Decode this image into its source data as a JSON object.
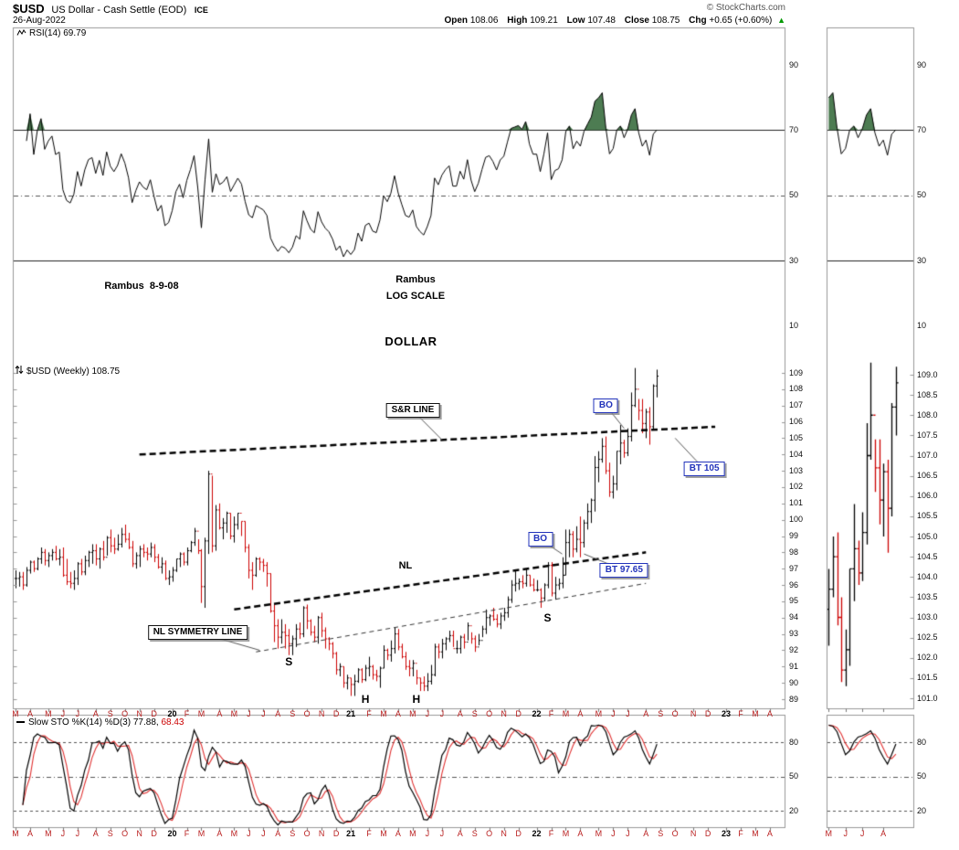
{
  "header": {
    "symbol": "$USD",
    "description": "US Dollar - Cash Settle (EOD)",
    "exchange": "ICE",
    "copyright": "© StockCharts.com",
    "date": "26-Aug-2022",
    "quote": {
      "open_l": "Open",
      "open_v": "108.06",
      "high_l": "High",
      "high_v": "109.21",
      "low_l": "Low",
      "low_v": "107.48",
      "close_l": "Close",
      "close_v": "108.75",
      "chg_l": "Chg",
      "chg_v": "+0.65 (+0.60%)",
      "arrow": "▲"
    }
  },
  "rsi_panel": {
    "name": "RSI(14)",
    "value": "69.79"
  },
  "price_panel": {
    "name": "$USD (Weekly)",
    "value": "108.75"
  },
  "sto_panel": {
    "name": "Slow STO %K(14) %D(3)",
    "k": "77.88,",
    "d": "68.43"
  },
  "notes": {
    "credit": "Rambus  8-9-08",
    "center_top": "Rambus",
    "center_mid": "LOG SCALE",
    "center_bottom": "DOLLAR"
  },
  "chart_data": {
    "type": "ohlc",
    "timeframe": "weekly",
    "title": "$USD US Dollar - Cash Settle (EOD) ICE",
    "price_ylim": [
      89,
      109
    ],
    "price_tick": 1,
    "mini_ylim": [
      101,
      109
    ],
    "mini_tick": 0.5,
    "mini_start_week": 160,
    "rsi_levels": [
      90,
      70,
      50,
      30,
      10
    ],
    "sto_levels": [
      80,
      50,
      20
    ],
    "indicators": {
      "rsi_period": 14,
      "sto_k_period": 14,
      "sto_d_period": 3
    },
    "colors": {
      "up": "#000000",
      "down": "#cc0000",
      "rsi_fill": "#4d7c52",
      "sto_k": "#000000",
      "sto_d": "#e03030",
      "annotation_blue": "#2233bb",
      "month_label": "#bb2222"
    },
    "months": [
      [
        "M",
        0
      ],
      [
        "A",
        4
      ],
      [
        "M",
        9
      ],
      [
        "J",
        13
      ],
      [
        "J",
        17
      ],
      [
        "A",
        22
      ],
      [
        "S",
        26
      ],
      [
        "O",
        30
      ],
      [
        "N",
        34
      ],
      [
        "D",
        38
      ],
      [
        "20",
        43
      ],
      [
        "F",
        47
      ],
      [
        "M",
        51
      ],
      [
        "A",
        56
      ],
      [
        "M",
        60
      ],
      [
        "J",
        64
      ],
      [
        "J",
        68
      ],
      [
        "A",
        72
      ],
      [
        "S",
        76
      ],
      [
        "O",
        80
      ],
      [
        "N",
        84
      ],
      [
        "D",
        88
      ],
      [
        "21",
        92
      ],
      [
        "F",
        97
      ],
      [
        "M",
        101
      ],
      [
        "A",
        105
      ],
      [
        "M",
        109
      ],
      [
        "J",
        113
      ],
      [
        "J",
        117
      ],
      [
        "A",
        122
      ],
      [
        "S",
        126
      ],
      [
        "O",
        130
      ],
      [
        "N",
        134
      ],
      [
        "D",
        138
      ],
      [
        "22",
        143
      ],
      [
        "F",
        147
      ],
      [
        "M",
        151
      ],
      [
        "A",
        155
      ],
      [
        "M",
        160
      ],
      [
        "J",
        164
      ],
      [
        "J",
        168
      ],
      [
        "A",
        173
      ],
      [
        "S",
        177
      ],
      [
        "O",
        181
      ],
      [
        "N",
        186
      ],
      [
        "D",
        190
      ],
      [
        "23",
        195
      ],
      [
        "F",
        199
      ],
      [
        "M",
        203
      ],
      [
        "A",
        207
      ]
    ],
    "weekly_hlc": [
      [
        96.9,
        95.8,
        96.4
      ],
      [
        96.8,
        95.9,
        96.5
      ],
      [
        96.8,
        95.7,
        96.0
      ],
      [
        97.1,
        95.9,
        96.9
      ],
      [
        97.5,
        96.7,
        97.4
      ],
      [
        97.5,
        96.8,
        97.0
      ],
      [
        97.7,
        96.9,
        97.6
      ],
      [
        98.3,
        97.3,
        98.0
      ],
      [
        98.2,
        97.2,
        97.5
      ],
      [
        98.0,
        97.1,
        97.8
      ],
      [
        98.2,
        97.5,
        98.0
      ],
      [
        98.4,
        97.5,
        97.6
      ],
      [
        98.2,
        97.2,
        97.7
      ],
      [
        98.3,
        96.5,
        96.6
      ],
      [
        97.6,
        96.0,
        96.2
      ],
      [
        96.8,
        95.8,
        96.1
      ],
      [
        96.9,
        95.7,
        96.4
      ],
      [
        97.4,
        96.0,
        97.3
      ],
      [
        97.6,
        96.6,
        96.8
      ],
      [
        97.8,
        96.6,
        97.5
      ],
      [
        98.1,
        97.1,
        98.0
      ],
      [
        98.5,
        97.3,
        98.1
      ],
      [
        98.5,
        97.2,
        97.6
      ],
      [
        98.3,
        97.0,
        98.2
      ],
      [
        98.7,
        97.5,
        97.7
      ],
      [
        99.0,
        97.8,
        98.9
      ],
      [
        99.4,
        98.0,
        98.4
      ],
      [
        98.9,
        97.9,
        98.2
      ],
      [
        99.1,
        98.1,
        98.5
      ],
      [
        99.5,
        98.3,
        99.1
      ],
      [
        99.7,
        98.6,
        98.8
      ],
      [
        99.2,
        98.2,
        98.3
      ],
      [
        98.7,
        97.1,
        97.3
      ],
      [
        98.0,
        97.0,
        97.8
      ],
      [
        98.4,
        97.1,
        98.2
      ],
      [
        98.5,
        97.7,
        98.0
      ],
      [
        98.3,
        97.5,
        97.9
      ],
      [
        98.6,
        97.7,
        98.3
      ],
      [
        98.5,
        97.4,
        97.7
      ],
      [
        97.9,
        97.0,
        97.1
      ],
      [
        97.7,
        96.7,
        97.3
      ],
      [
        97.5,
        96.3,
        96.4
      ],
      [
        96.9,
        96.0,
        96.5
      ],
      [
        97.1,
        96.2,
        96.9
      ],
      [
        97.6,
        96.8,
        97.6
      ],
      [
        98.0,
        97.1,
        97.9
      ],
      [
        98.0,
        97.2,
        97.4
      ],
      [
        98.3,
        97.2,
        98.1
      ],
      [
        98.7,
        98.0,
        98.6
      ],
      [
        99.5,
        98.4,
        99.3
      ],
      [
        98.8,
        97.9,
        98.1
      ],
      [
        98.2,
        94.9,
        95.9
      ],
      [
        98.9,
        94.6,
        98.7
      ],
      [
        103.0,
        97.9,
        102.8
      ],
      [
        102.7,
        98.0,
        98.4
      ],
      [
        100.9,
        98.1,
        100.6
      ],
      [
        101.0,
        99.4,
        99.5
      ],
      [
        100.1,
        98.8,
        99.8
      ],
      [
        100.5,
        99.2,
        100.4
      ],
      [
        100.4,
        98.8,
        99.0
      ],
      [
        100.2,
        98.6,
        99.7
      ],
      [
        100.4,
        99.4,
        100.4
      ],
      [
        99.9,
        99.0,
        99.9
      ],
      [
        99.9,
        98.0,
        98.3
      ],
      [
        98.5,
        96.4,
        96.9
      ],
      [
        97.4,
        95.7,
        96.6
      ],
      [
        97.7,
        96.5,
        97.6
      ],
      [
        97.7,
        96.9,
        97.4
      ],
      [
        97.6,
        96.8,
        97.2
      ],
      [
        97.4,
        95.9,
        96.7
      ],
      [
        96.7,
        94.3,
        94.4
      ],
      [
        94.8,
        92.5,
        93.5
      ],
      [
        93.9,
        92.1,
        92.8
      ],
      [
        93.9,
        92.4,
        93.1
      ],
      [
        93.6,
        92.1,
        92.9
      ],
      [
        93.3,
        91.7,
        92.4
      ],
      [
        92.9,
        91.7,
        92.7
      ],
      [
        93.6,
        92.2,
        93.3
      ],
      [
        93.7,
        92.7,
        93.0
      ],
      [
        94.7,
        92.8,
        94.6
      ],
      [
        94.8,
        93.3,
        93.8
      ],
      [
        93.9,
        92.9,
        93.1
      ],
      [
        93.5,
        92.5,
        92.8
      ],
      [
        94.1,
        92.4,
        94.0
      ],
      [
        94.3,
        92.8,
        93.2
      ],
      [
        93.4,
        92.1,
        92.7
      ],
      [
        92.8,
        92.0,
        92.4
      ],
      [
        92.5,
        91.5,
        91.8
      ],
      [
        91.9,
        90.5,
        90.8
      ],
      [
        91.2,
        90.4,
        91.0
      ],
      [
        91.0,
        89.7,
        90.0
      ],
      [
        90.5,
        89.6,
        90.3
      ],
      [
        90.3,
        89.2,
        89.9
      ],
      [
        90.5,
        89.2,
        90.1
      ],
      [
        90.9,
        90.0,
        90.8
      ],
      [
        90.9,
        90.0,
        90.2
      ],
      [
        91.1,
        90.1,
        90.9
      ],
      [
        91.6,
        90.4,
        91.0
      ],
      [
        91.1,
        90.2,
        90.5
      ],
      [
        90.8,
        90.1,
        90.4
      ],
      [
        91.0,
        89.7,
        90.9
      ],
      [
        92.3,
        90.9,
        92.0
      ],
      [
        92.1,
        91.4,
        91.7
      ],
      [
        92.6,
        91.3,
        92.1
      ],
      [
        93.4,
        91.8,
        93.0
      ],
      [
        93.3,
        92.0,
        92.2
      ],
      [
        92.4,
        91.5,
        91.6
      ],
      [
        91.9,
        90.8,
        91.0
      ],
      [
        91.4,
        90.4,
        90.9
      ],
      [
        91.4,
        90.4,
        91.2
      ],
      [
        90.8,
        89.9,
        90.3
      ],
      [
        90.3,
        89.5,
        90.0
      ],
      [
        90.4,
        89.5,
        89.8
      ],
      [
        90.6,
        89.5,
        90.1
      ],
      [
        91.1,
        89.9,
        90.5
      ],
      [
        92.4,
        90.4,
        92.2
      ],
      [
        92.4,
        91.5,
        91.9
      ],
      [
        92.7,
        91.5,
        92.4
      ],
      [
        92.8,
        92.0,
        92.7
      ],
      [
        93.2,
        92.5,
        92.9
      ],
      [
        93.2,
        92.2,
        92.1
      ],
      [
        92.6,
        91.8,
        92.1
      ],
      [
        92.9,
        91.8,
        92.8
      ],
      [
        93.0,
        92.1,
        92.5
      ],
      [
        93.7,
        92.6,
        93.5
      ],
      [
        93.1,
        92.4,
        92.7
      ],
      [
        92.9,
        91.9,
        92.2
      ],
      [
        93.0,
        92.3,
        92.6
      ],
      [
        93.5,
        92.8,
        93.3
      ],
      [
        94.5,
        93.0,
        94.0
      ],
      [
        94.2,
        93.5,
        94.1
      ],
      [
        94.6,
        93.8,
        93.9
      ],
      [
        94.2,
        93.4,
        93.6
      ],
      [
        94.3,
        93.3,
        94.1
      ],
      [
        94.6,
        93.8,
        94.3
      ],
      [
        95.3,
        94.0,
        95.1
      ],
      [
        96.3,
        94.9,
        96.0
      ],
      [
        96.9,
        95.6,
        96.1
      ],
      [
        96.4,
        95.7,
        96.2
      ],
      [
        96.6,
        95.8,
        96.1
      ],
      [
        97.0,
        95.9,
        96.6
      ],
      [
        96.6,
        95.9,
        96.0
      ],
      [
        96.4,
        95.6,
        95.7
      ],
      [
        96.3,
        95.6,
        95.7
      ],
      [
        95.8,
        94.6,
        95.2
      ],
      [
        96.1,
        95.0,
        96.0
      ],
      [
        97.4,
        95.8,
        97.2
      ],
      [
        97.4,
        95.3,
        95.5
      ],
      [
        96.5,
        95.1,
        96.0
      ],
      [
        96.4,
        95.7,
        96.1
      ],
      [
        97.7,
        95.8,
        96.6
      ],
      [
        99.4,
        96.6,
        98.6
      ],
      [
        99.4,
        97.7,
        99.1
      ],
      [
        99.3,
        97.7,
        98.2
      ],
      [
        99.6,
        98.0,
        98.8
      ],
      [
        100.2,
        97.7,
        98.6
      ],
      [
        100.0,
        98.3,
        99.8
      ],
      [
        101.0,
        99.4,
        100.5
      ],
      [
        101.3,
        99.8,
        101.2
      ],
      [
        103.9,
        100.5,
        103.2
      ],
      [
        104.2,
        102.3,
        103.7
      ],
      [
        105.0,
        103.5,
        104.5
      ],
      [
        105.1,
        102.8,
        103.0
      ],
      [
        103.5,
        101.4,
        101.7
      ],
      [
        102.7,
        101.3,
        102.2
      ],
      [
        104.2,
        101.8,
        104.2
      ],
      [
        105.8,
        103.4,
        104.7
      ],
      [
        104.9,
        103.8,
        104.1
      ],
      [
        105.6,
        103.9,
        105.1
      ],
      [
        107.8,
        104.8,
        107.0
      ],
      [
        109.3,
        106.9,
        108.0
      ],
      [
        107.4,
        106.1,
        106.7
      ],
      [
        107.4,
        105.3,
        105.9
      ],
      [
        106.8,
        105.0,
        106.6
      ],
      [
        106.9,
        104.6,
        105.7
      ],
      [
        108.3,
        105.5,
        108.2
      ],
      [
        109.2,
        107.5,
        108.8
      ]
    ],
    "trendlines": [
      {
        "name": "sr-line",
        "w1": 34,
        "p1": 104.0,
        "w2": 192,
        "p2": 105.7,
        "width": 2.5,
        "dash": [
          7,
          4
        ],
        "color": "#000000"
      },
      {
        "name": "neckline",
        "w1": 60,
        "p1": 94.5,
        "w2": 173,
        "p2": 98.0,
        "width": 2.5,
        "dash": [
          7,
          4
        ],
        "color": "#000000"
      },
      {
        "name": "neckline-symmetry",
        "w1": 66,
        "p1": 91.9,
        "w2": 173,
        "p2": 96.1,
        "width": 1,
        "dash": [
          5,
          4
        ],
        "color": "#333333"
      }
    ],
    "callouts": [
      {
        "text": "S&R LINE",
        "week": 109,
        "price": 106.7,
        "tip_week": 117,
        "tip_price": 104.9,
        "color": "black"
      },
      {
        "text": "NL SYMMETRY LINE",
        "week": 50,
        "price": 93.1,
        "tip_week": 67,
        "tip_price": 92.0,
        "color": "black"
      },
      {
        "text": "BO",
        "week": 144,
        "price": 98.8,
        "tip_week": 150,
        "tip_price": 97.9,
        "color": "blue"
      },
      {
        "text": "BT 97.65",
        "week": 167,
        "price": 96.9,
        "tip_week": 156,
        "tip_price": 97.9,
        "color": "blue"
      },
      {
        "text": "BO",
        "week": 162,
        "price": 107.0,
        "tip_week": 167,
        "tip_price": 105.6,
        "color": "blue"
      },
      {
        "text": "BT 105",
        "week": 189,
        "price": 103.1,
        "tip_week": 181,
        "tip_price": 105.0,
        "color": "blue"
      }
    ],
    "letters": [
      {
        "text": "S",
        "week": 75,
        "price": 91.3
      },
      {
        "text": "H",
        "week": 96,
        "price": 89.0
      },
      {
        "text": "H",
        "week": 110,
        "price": 89.0
      },
      {
        "text": "S",
        "week": 146,
        "price": 94.0
      }
    ],
    "pattern_labels": [
      {
        "text": "NL",
        "week": 107,
        "price": 97.2
      }
    ]
  }
}
